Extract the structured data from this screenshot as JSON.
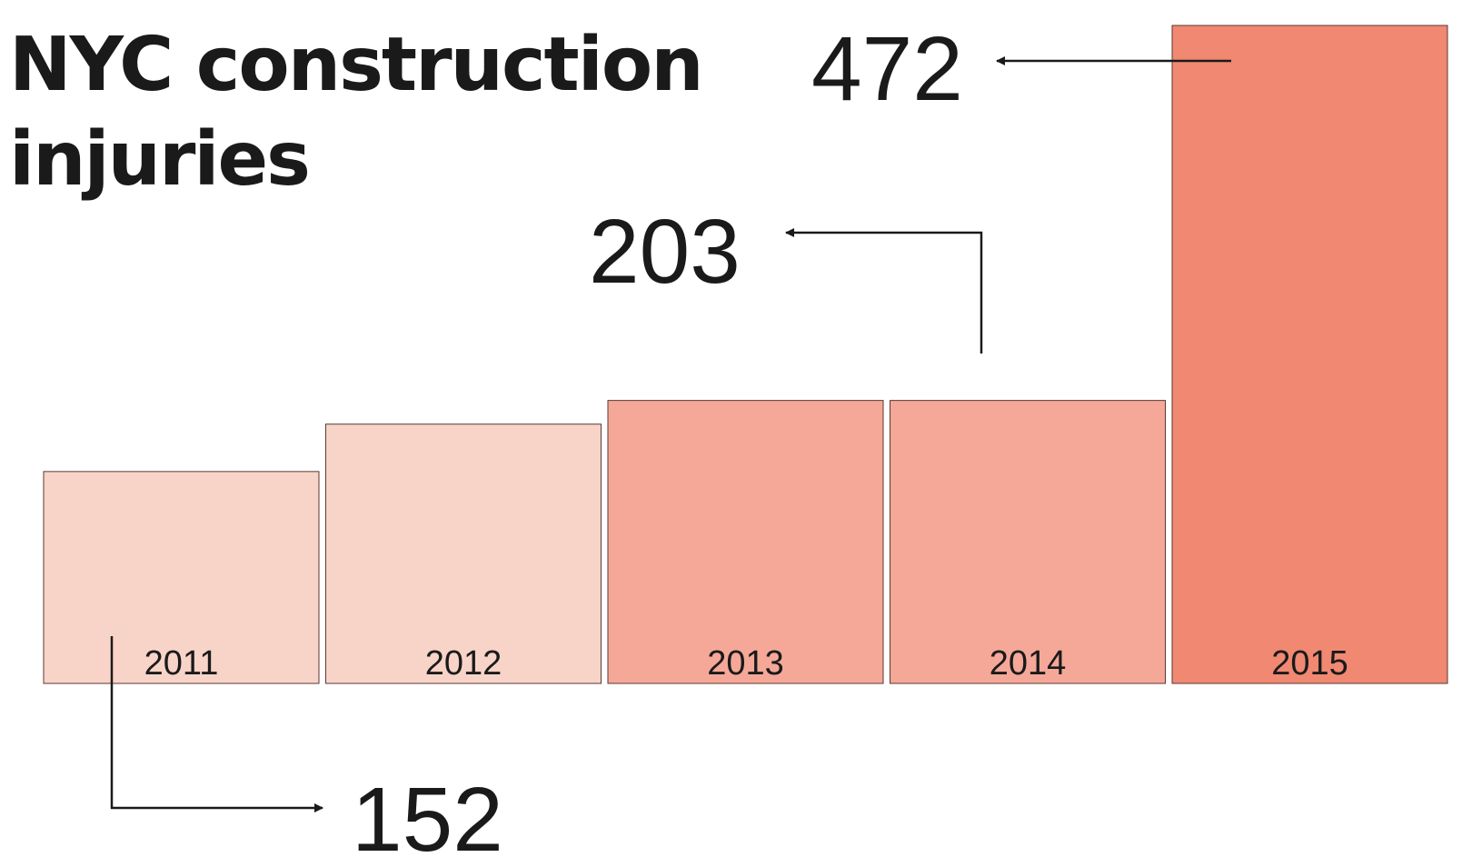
{
  "chart_data": {
    "type": "bar",
    "title": "NYC construction injuries",
    "categories": [
      "2011",
      "2012",
      "2013",
      "2014",
      "2015"
    ],
    "values": [
      152,
      186,
      203,
      203,
      472
    ],
    "colors": [
      "#f8d3c8",
      "#f8d3c8",
      "#f5a898",
      "#f5a898",
      "#f08872"
    ]
  }
}
